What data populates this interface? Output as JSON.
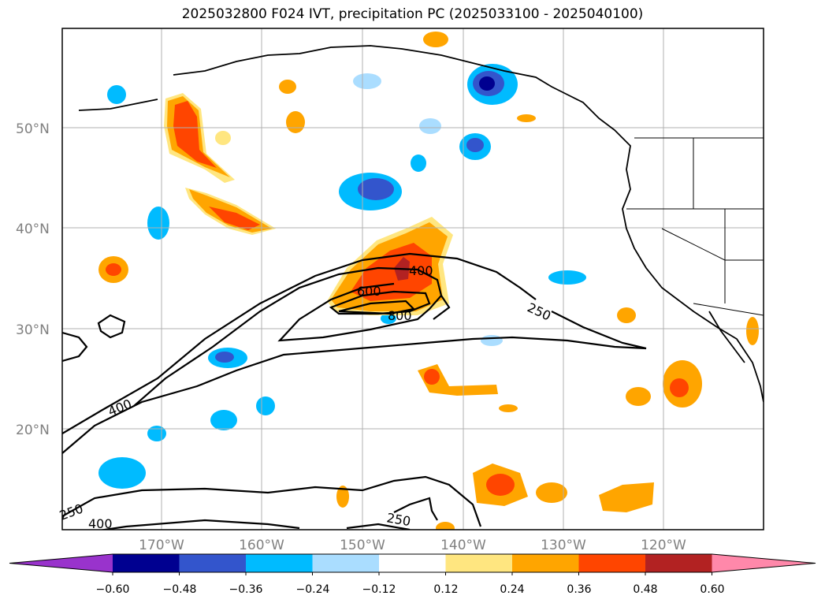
{
  "title": "2025032800 F024 IVT, precipitation PC (2025033100 - 2025040100)",
  "map": {
    "lat_ticks": [
      "50°N",
      "40°N",
      "30°N",
      "20°N"
    ],
    "lon_ticks": [
      "170°W",
      "160°W",
      "150°W",
      "140°W",
      "130°W",
      "120°W"
    ],
    "gridlines": true,
    "land_boundaries": "black coastline and state borders"
  },
  "ivt_contours": {
    "levels": [
      "250",
      "400",
      "600",
      "800"
    ],
    "labels": [
      "400",
      "600",
      "800",
      "250",
      "400",
      "250",
      "400",
      "250"
    ]
  },
  "colorbar": {
    "tick_labels": [
      "−0.60",
      "−0.48",
      "−0.36",
      "−0.24",
      "−0.12",
      "0.12",
      "0.24",
      "0.36",
      "0.48",
      "0.60"
    ],
    "colors": [
      "#9933cc",
      "#000090",
      "#3355cc",
      "#00bbff",
      "#aaddff",
      "#ffffff",
      "#ffe680",
      "#ffa500",
      "#ff4500",
      "#b22222",
      "#ff88aa"
    ],
    "extend": "both"
  },
  "colors": {
    "neg_dark": "#000090",
    "neg_mid": "#3355cc",
    "neg_cyan": "#00bbff",
    "neg_light": "#aaddff",
    "pos_light": "#ffe680",
    "pos_orange": "#ffa500",
    "pos_red": "#ff4500",
    "pos_dark": "#b22222"
  }
}
